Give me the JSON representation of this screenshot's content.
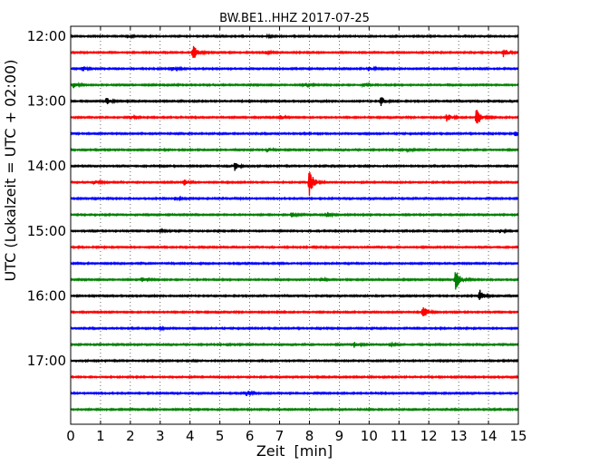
{
  "chart_data": {
    "type": "line",
    "title": "BW.BE1..HHZ 2017-07-25",
    "xlabel": "Zeit  [min]",
    "ylabel": "UTC (Lokalzeit = UTC + 02:00)",
    "xlim": [
      0,
      15
    ],
    "x_ticks": [
      "0",
      "1",
      "2",
      "3",
      "4",
      "5",
      "6",
      "7",
      "8",
      "9",
      "10",
      "11",
      "12",
      "13",
      "14",
      "15"
    ],
    "y_ticks": [
      "12:00",
      "13:00",
      "14:00",
      "15:00",
      "16:00",
      "17:00"
    ],
    "grid": true,
    "trace_colors": [
      "#000000",
      "#ff0000",
      "#0000ff",
      "#008000"
    ],
    "traces": [
      {
        "start": "12:00",
        "events": [
          {
            "t": 1.9,
            "a": 0.2
          },
          {
            "t": 6.6,
            "a": 0.15
          }
        ]
      },
      {
        "start": "12:15",
        "events": [
          {
            "t": 4.1,
            "a": 1.2
          },
          {
            "t": 6.5,
            "a": 0.25
          },
          {
            "t": 14.5,
            "a": 0.7
          }
        ]
      },
      {
        "start": "12:30",
        "events": [
          {
            "t": 0.4,
            "a": 0.35
          },
          {
            "t": 3.4,
            "a": 0.3
          },
          {
            "t": 10.0,
            "a": 0.35
          }
        ]
      },
      {
        "start": "12:45",
        "events": [
          {
            "t": 0.1,
            "a": 0.4
          },
          {
            "t": 7.8,
            "a": 0.25
          },
          {
            "t": 9.8,
            "a": 0.3
          }
        ]
      },
      {
        "start": "13:00",
        "events": [
          {
            "t": 1.2,
            "a": 0.55
          },
          {
            "t": 10.4,
            "a": 0.7
          }
        ]
      },
      {
        "start": "13:15",
        "events": [
          {
            "t": 2.0,
            "a": 0.2
          },
          {
            "t": 7.0,
            "a": 0.35
          },
          {
            "t": 12.6,
            "a": 0.6
          },
          {
            "t": 13.6,
            "a": 1.6
          }
        ]
      },
      {
        "start": "13:30",
        "events": [
          {
            "t": 14.9,
            "a": 0.45
          }
        ]
      },
      {
        "start": "13:45",
        "events": [
          {
            "t": 6.6,
            "a": 0.25
          },
          {
            "t": 11.3,
            "a": 0.2
          }
        ]
      },
      {
        "start": "14:00",
        "events": [
          {
            "t": 5.5,
            "a": 0.6
          }
        ]
      },
      {
        "start": "14:15",
        "events": [
          {
            "t": 0.8,
            "a": 0.3
          },
          {
            "t": 3.8,
            "a": 0.4
          },
          {
            "t": 8.0,
            "a": 2.0
          }
        ]
      },
      {
        "start": "14:30",
        "events": [
          {
            "t": 3.5,
            "a": 0.2
          }
        ]
      },
      {
        "start": "14:45",
        "events": [
          {
            "t": 7.4,
            "a": 0.35
          },
          {
            "t": 8.6,
            "a": 0.35
          }
        ]
      },
      {
        "start": "15:00",
        "events": [
          {
            "t": 3.0,
            "a": 0.15
          },
          {
            "t": 14.4,
            "a": 0.2
          }
        ]
      },
      {
        "start": "15:15",
        "events": []
      },
      {
        "start": "15:30",
        "events": []
      },
      {
        "start": "15:45",
        "events": [
          {
            "t": 2.4,
            "a": 0.3
          },
          {
            "t": 8.4,
            "a": 0.25
          },
          {
            "t": 12.9,
            "a": 1.5
          }
        ]
      },
      {
        "start": "16:00",
        "events": [
          {
            "t": 13.7,
            "a": 1.0
          }
        ]
      },
      {
        "start": "16:15",
        "events": [
          {
            "t": 11.8,
            "a": 1.1
          }
        ]
      },
      {
        "start": "16:30",
        "events": [
          {
            "t": 3.0,
            "a": 0.15
          }
        ]
      },
      {
        "start": "16:45",
        "events": [
          {
            "t": 9.5,
            "a": 0.4
          },
          {
            "t": 10.7,
            "a": 0.2
          }
        ]
      },
      {
        "start": "17:00",
        "events": []
      },
      {
        "start": "17:15",
        "events": []
      },
      {
        "start": "17:30",
        "events": [
          {
            "t": 5.9,
            "a": 0.35
          }
        ]
      },
      {
        "start": "17:45",
        "events": []
      }
    ]
  }
}
